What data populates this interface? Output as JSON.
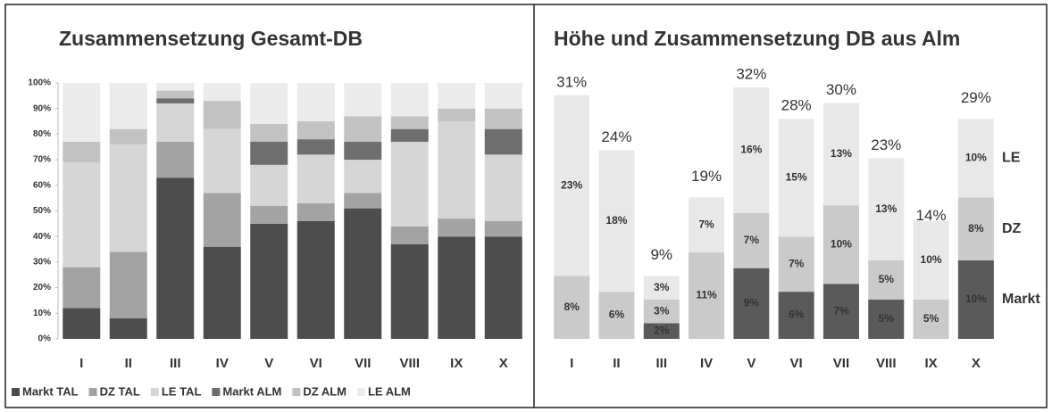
{
  "chart_data": [
    {
      "type": "bar",
      "stacked": true,
      "title": "Zusammensetzung Gesamt-DB",
      "categories": [
        "I",
        "II",
        "III",
        "IV",
        "V",
        "VI",
        "VII",
        "VIII",
        "IX",
        "X"
      ],
      "series": [
        {
          "name": "Markt TAL",
          "color": "#4d4d4d",
          "values": [
            12,
            8,
            63,
            36,
            45,
            46,
            51,
            37,
            40,
            40
          ]
        },
        {
          "name": "DZ TAL",
          "color": "#a3a3a3",
          "values": [
            16,
            26,
            14,
            21,
            7,
            7,
            6,
            7,
            7,
            6
          ]
        },
        {
          "name": "LE TAL",
          "color": "#d6d6d6",
          "values": [
            41,
            42,
            15,
            25,
            16,
            19,
            13,
            33,
            38,
            26
          ]
        },
        {
          "name": "Markt ALM",
          "color": "#6e6e6e",
          "values": [
            0,
            0,
            2,
            0,
            9,
            6,
            7,
            5,
            0,
            10
          ]
        },
        {
          "name": "DZ ALM",
          "color": "#c2c2c2",
          "values": [
            8,
            6,
            3,
            11,
            7,
            7,
            10,
            5,
            5,
            8
          ]
        },
        {
          "name": "LE ALM",
          "color": "#ebebeb",
          "values": [
            23,
            18,
            3,
            7,
            16,
            15,
            13,
            13,
            10,
            10
          ]
        }
      ],
      "ylim": [
        0,
        100
      ],
      "yticks": [
        {
          "value": 0,
          "label": "0%"
        },
        {
          "value": 10,
          "label": "10%"
        },
        {
          "value": 20,
          "label": "20%"
        },
        {
          "value": 30,
          "label": "30%"
        },
        {
          "value": 40,
          "label": "40%"
        },
        {
          "value": 50,
          "label": "50%"
        },
        {
          "value": 60,
          "label": "60%"
        },
        {
          "value": 70,
          "label": "70%"
        },
        {
          "value": 80,
          "label": "80%"
        },
        {
          "value": 90,
          "label": "90%"
        },
        {
          "value": 100,
          "label": "100%"
        }
      ],
      "grid": false,
      "legend": "bottom"
    },
    {
      "type": "bar",
      "stacked": true,
      "title": "Höhe und Zusammensetzung DB aus Alm",
      "categories": [
        "I",
        "II",
        "III",
        "IV",
        "V",
        "VI",
        "VII",
        "VIII",
        "IX",
        "X"
      ],
      "series": [
        {
          "name": "Markt",
          "color": "#5a5a5a",
          "values": [
            null,
            null,
            2,
            null,
            9,
            6,
            7,
            5,
            null,
            10
          ],
          "value_labels": [
            null,
            null,
            "2%",
            null,
            "9%",
            "6%",
            "7%",
            "5%",
            null,
            "10%"
          ]
        },
        {
          "name": "DZ",
          "color": "#cacaca",
          "values": [
            8,
            6,
            3,
            11,
            7,
            7,
            10,
            5,
            5,
            8
          ],
          "value_labels": [
            "8%",
            "6%",
            "3%",
            "11%",
            "7%",
            "7%",
            "10%",
            "5%",
            "5%",
            "8%"
          ]
        },
        {
          "name": "LE",
          "color": "#e8e8e8",
          "values": [
            23,
            18,
            3,
            7,
            16,
            15,
            13,
            13,
            10,
            10
          ],
          "value_labels": [
            "23%",
            "18%",
            "3%",
            "7%",
            "16%",
            "15%",
            "13%",
            "13%",
            "10%",
            "10%"
          ]
        }
      ],
      "totals": [
        31,
        24,
        9,
        19,
        32,
        28,
        30,
        23,
        14,
        29
      ],
      "total_labels": [
        "31%",
        "24%",
        "9%",
        "19%",
        "32%",
        "28%",
        "30%",
        "23%",
        "14%",
        "29%"
      ],
      "legend": "right"
    }
  ]
}
